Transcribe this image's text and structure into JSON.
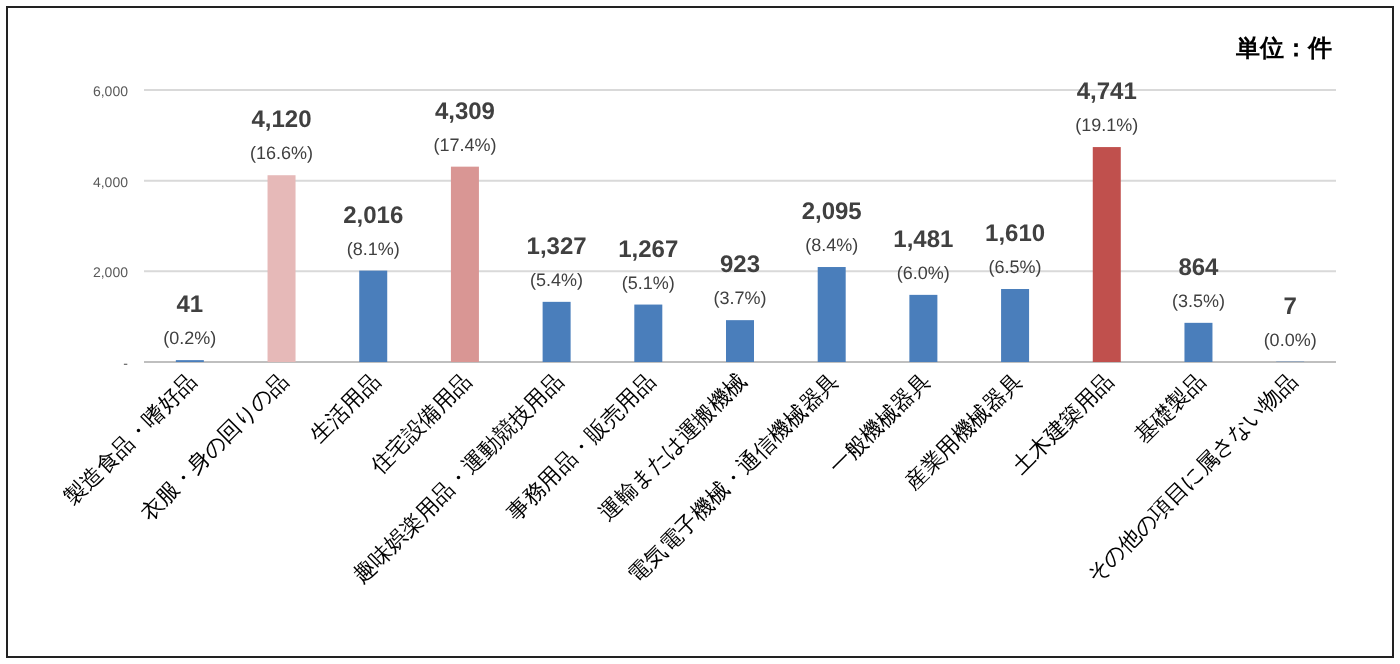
{
  "chart_data": {
    "type": "bar",
    "categories": [
      "製造食品・嗜好品",
      "衣服・身の回りの品",
      "生活用品",
      "住宅設備用品",
      "趣味娯楽用品・運動競技用品",
      "事務用品・販売用品",
      "運輸または運搬機械",
      "電気電子機械・通信機械器具",
      "一般機械器具",
      "産業用機械器具",
      "土木建築用品",
      "基礎製品",
      "その他の項目に属さない物品"
    ],
    "values": [
      41,
      4120,
      2016,
      4309,
      1327,
      1267,
      923,
      2095,
      1481,
      1610,
      4741,
      864,
      7
    ],
    "colors": [
      "#4a7ebb",
      "#e6b9b8",
      "#4a7ebb",
      "#d99694",
      "#4a7ebb",
      "#4a7ebb",
      "#4a7ebb",
      "#4a7ebb",
      "#4a7ebb",
      "#4a7ebb",
      "#c0504d",
      "#4a7ebb",
      "#4a7ebb"
    ],
    "value_labels": [
      "41\n(0.2%)",
      "4,120\n(16.6%)",
      "2,016\n(8.1%)",
      "4,309\n(17.4%)",
      "1,327\n(5.4%)",
      "1,267\n(5.1%)",
      "923\n(3.7%)",
      "2,095\n(8.4%)",
      "1,481\n(6.0%)",
      "1,610\n(6.5%)",
      "4,741\n(19.1%)",
      "864\n(3.5%)",
      "7\n(0.0%)"
    ],
    "ylim": [
      0,
      6000
    ],
    "yticks": [
      {
        "value": 0,
        "label": "-"
      },
      {
        "value": 2000,
        "label": "2,000"
      },
      {
        "value": 4000,
        "label": "4,000"
      },
      {
        "value": 6000,
        "label": "6,000"
      }
    ],
    "grid": "y",
    "annotations": [
      "単位：件"
    ]
  }
}
